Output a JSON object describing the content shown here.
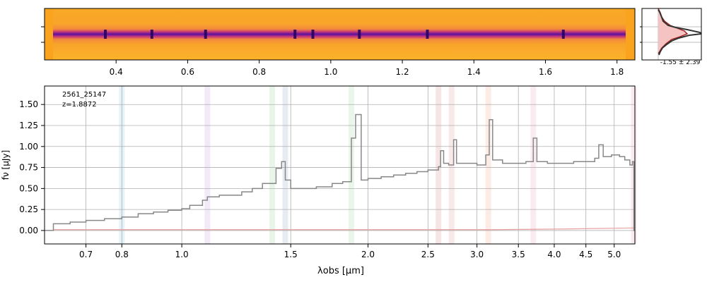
{
  "chart_data": [
    {
      "type": "heatmap",
      "panel": "2d-spectrum",
      "xticks": [
        "0.4",
        "0.6",
        "0.8",
        "1.0",
        "1.2",
        "1.4",
        "1.6",
        "1.8"
      ],
      "xlim": [
        0.2,
        1.85
      ],
      "colormap": "plasma",
      "trace_dark_spots_um": [
        0.37,
        0.5,
        0.65,
        0.9,
        0.95,
        1.08,
        1.27,
        1.65
      ]
    },
    {
      "type": "histogram",
      "panel": "noise-distribution",
      "label": "-1.55 ± 2.39",
      "fill_color": "#f4b5b5",
      "line_color": "#8b1a1a"
    },
    {
      "type": "line",
      "panel": "1d-spectrum",
      "id_label": "2561_25147",
      "z_label": "z=1.8872",
      "xlabel": "λobs [μm]",
      "ylabel": "fν [μJy]",
      "xticks": [
        "0.7",
        "0.8",
        "1.0",
        "1.5",
        "2.0",
        "2.5",
        "3.0",
        "3.5",
        "4.0",
        "4.5",
        "5.0"
      ],
      "yticks": [
        "0.00",
        "0.25",
        "0.50",
        "0.75",
        "1.00",
        "1.25",
        "1.50"
      ],
      "ylim": [
        -0.16,
        1.72
      ],
      "series": [
        {
          "color": "#888888",
          "points": [
            [
              0.6,
              0.0
            ],
            [
              0.62,
              0.08
            ],
            [
              0.66,
              0.1
            ],
            [
              0.7,
              0.12
            ],
            [
              0.75,
              0.14
            ],
            [
              0.8,
              0.16
            ],
            [
              0.85,
              0.2
            ],
            [
              0.9,
              0.22
            ],
            [
              0.95,
              0.24
            ],
            [
              1.0,
              0.26
            ],
            [
              1.03,
              0.3
            ],
            [
              1.08,
              0.36
            ],
            [
              1.1,
              0.4
            ],
            [
              1.15,
              0.42
            ],
            [
              1.25,
              0.46
            ],
            [
              1.3,
              0.5
            ],
            [
              1.35,
              0.56
            ],
            [
              1.42,
              0.74
            ],
            [
              1.45,
              0.82
            ],
            [
              1.47,
              0.6
            ],
            [
              1.5,
              0.5
            ],
            [
              1.55,
              0.5
            ],
            [
              1.65,
              0.52
            ],
            [
              1.75,
              0.56
            ],
            [
              1.82,
              0.58
            ],
            [
              1.88,
              1.1
            ],
            [
              1.91,
              1.38
            ],
            [
              1.95,
              0.6
            ],
            [
              2.0,
              0.62
            ],
            [
              2.1,
              0.64
            ],
            [
              2.2,
              0.66
            ],
            [
              2.3,
              0.68
            ],
            [
              2.4,
              0.7
            ],
            [
              2.5,
              0.72
            ],
            [
              2.6,
              0.76
            ],
            [
              2.62,
              0.95
            ],
            [
              2.65,
              0.8
            ],
            [
              2.7,
              0.78
            ],
            [
              2.75,
              1.08
            ],
            [
              2.78,
              0.8
            ],
            [
              2.9,
              0.8
            ],
            [
              3.0,
              0.78
            ],
            [
              3.1,
              0.9
            ],
            [
              3.14,
              1.32
            ],
            [
              3.18,
              0.84
            ],
            [
              3.3,
              0.8
            ],
            [
              3.5,
              0.8
            ],
            [
              3.6,
              0.82
            ],
            [
              3.7,
              1.1
            ],
            [
              3.75,
              0.82
            ],
            [
              3.9,
              0.8
            ],
            [
              4.1,
              0.8
            ],
            [
              4.3,
              0.82
            ],
            [
              4.5,
              0.82
            ],
            [
              4.65,
              0.86
            ],
            [
              4.72,
              1.02
            ],
            [
              4.8,
              0.88
            ],
            [
              4.95,
              0.9
            ],
            [
              5.1,
              0.88
            ],
            [
              5.2,
              0.84
            ],
            [
              5.3,
              0.78
            ],
            [
              5.35,
              0.82
            ],
            [
              5.38,
              0.0
            ]
          ]
        }
      ],
      "bands": [
        {
          "x": 0.8,
          "color": "#cfe8f6"
        },
        {
          "x": 1.1,
          "color": "#e7d9f2"
        },
        {
          "x": 1.4,
          "color": "#d6ecd7"
        },
        {
          "x": 1.47,
          "color": "#d3dce8"
        },
        {
          "x": 1.88,
          "color": "#d9efd9"
        },
        {
          "x": 2.6,
          "color": "#ecd1cf"
        },
        {
          "x": 2.73,
          "color": "#f0d9d6"
        },
        {
          "x": 3.13,
          "color": "#f9dcd0"
        },
        {
          "x": 3.7,
          "color": "#f6dbe6"
        },
        {
          "x": 5.38,
          "color": "#f6dbe6"
        }
      ]
    }
  ]
}
